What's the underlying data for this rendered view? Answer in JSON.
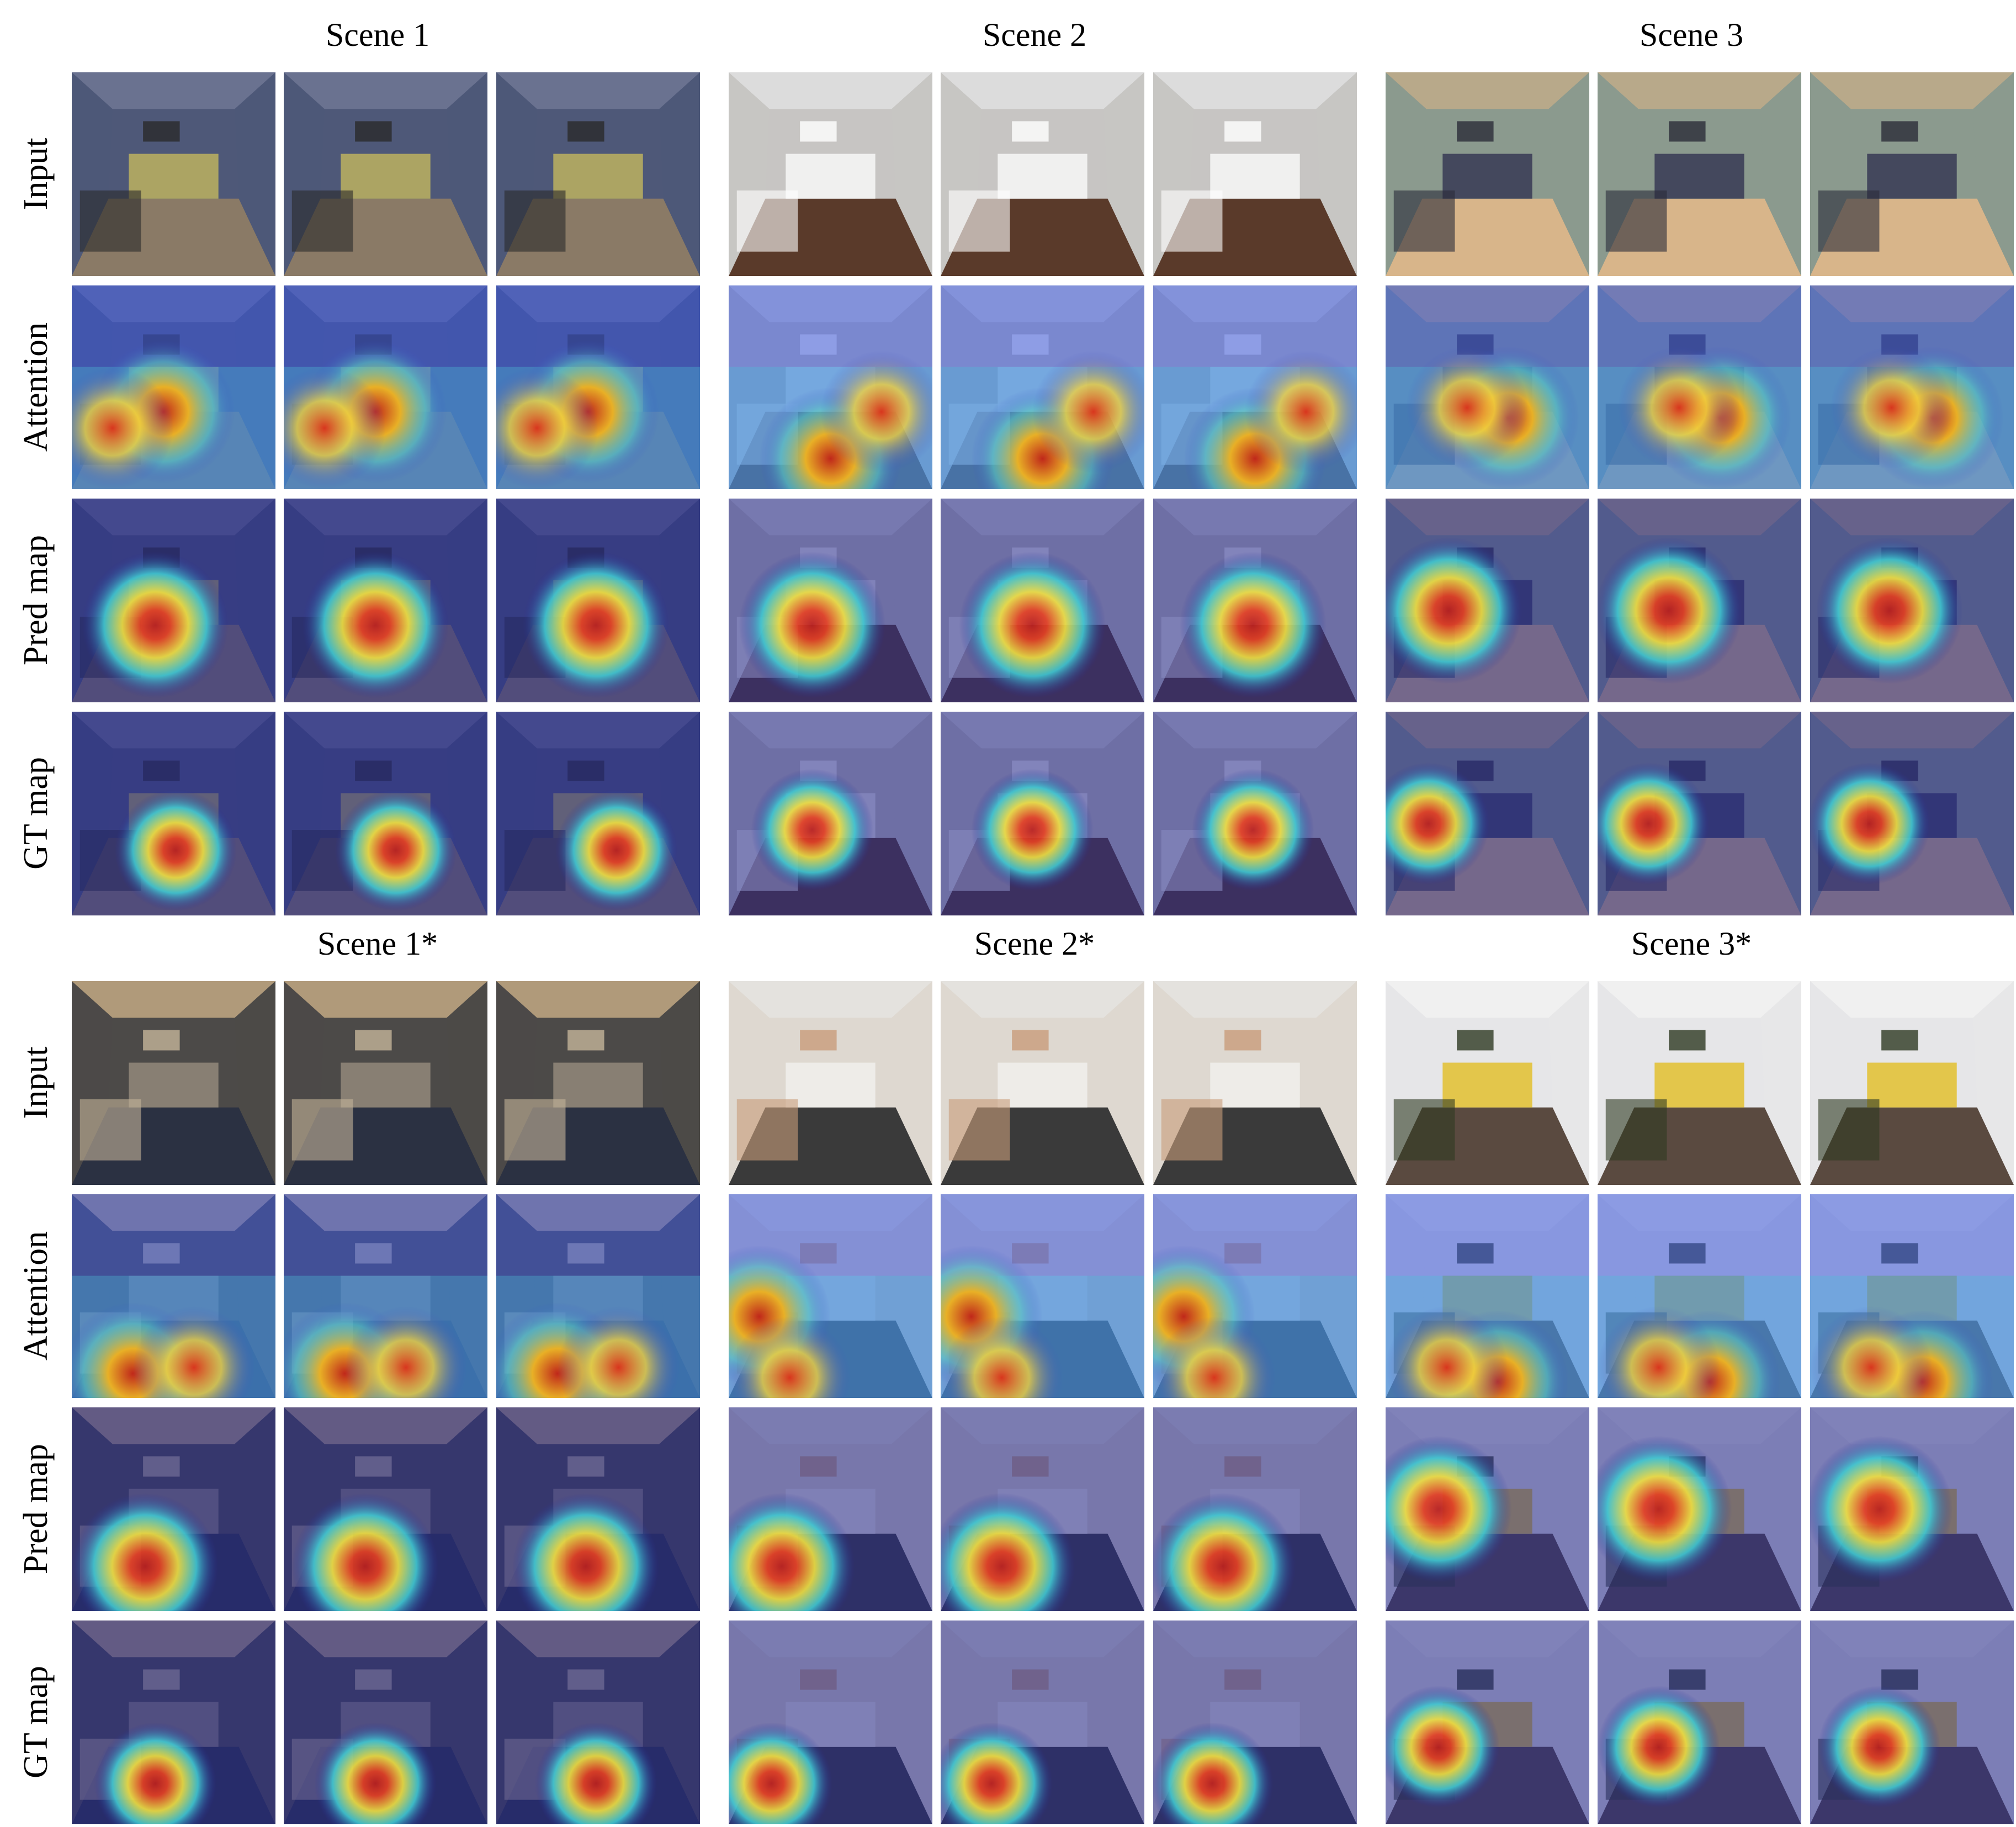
{
  "figure": {
    "scene_titles": [
      "Scene 1",
      "Scene 2",
      "Scene 3",
      "Scene 1*",
      "Scene 2*",
      "Scene 3*"
    ],
    "row_labels": [
      "Input",
      "Attention",
      "Pred map",
      "GT map"
    ]
  }
}
